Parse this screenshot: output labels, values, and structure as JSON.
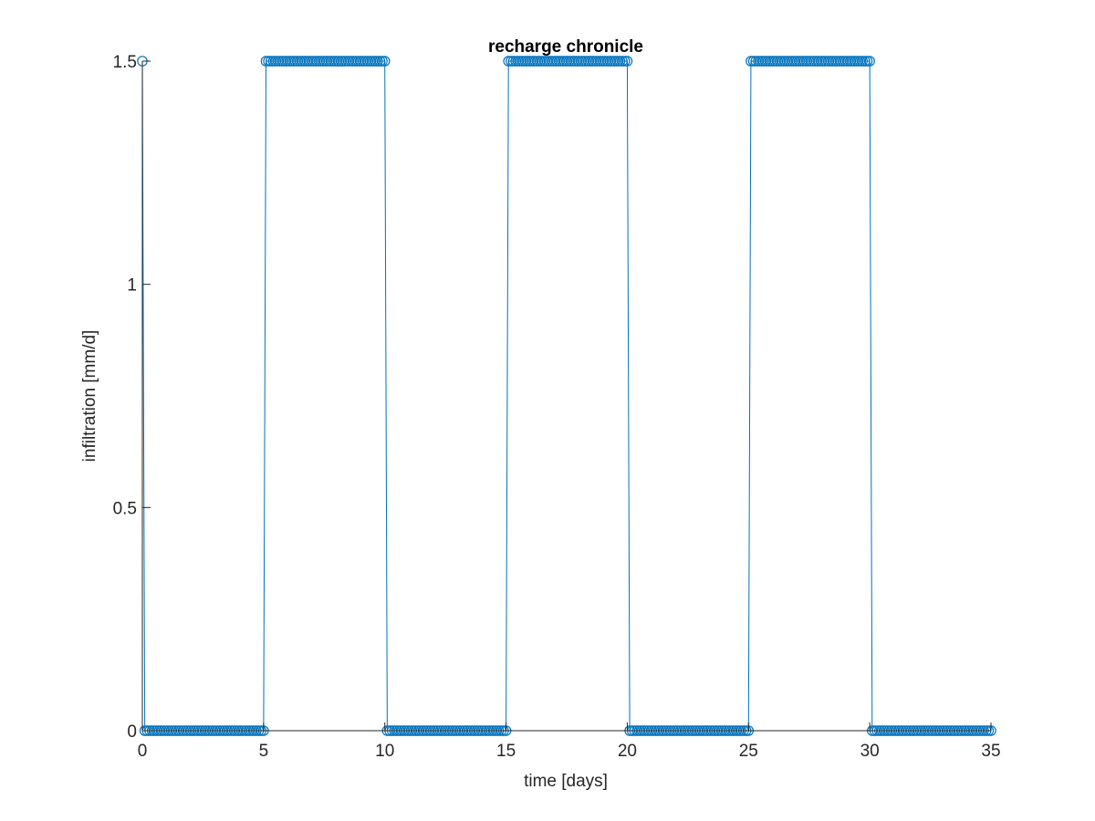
{
  "chart_data": {
    "type": "line",
    "title": "recharge chronicle",
    "xlabel": "time [days]",
    "ylabel": "infiltration [mm/d]",
    "xlim": [
      0,
      35
    ],
    "ylim": [
      0,
      1.5
    ],
    "xticks": [
      0,
      5,
      10,
      15,
      20,
      25,
      30,
      35
    ],
    "yticks": [
      0,
      0.5,
      1,
      1.5
    ],
    "xtick_labels": [
      "0",
      "5",
      "10",
      "15",
      "20",
      "25",
      "30",
      "35"
    ],
    "ytick_labels": [
      "0",
      "0.5",
      "1",
      "1.5"
    ],
    "grid": false,
    "legend": "none",
    "marker": "circle",
    "series_color": "#0072BD",
    "sample_step_days": 0.1,
    "series": [
      {
        "segments": [
          {
            "x_start": 0,
            "x_end": 0,
            "y": 1.5
          },
          {
            "x_start": 0.1,
            "x_end": 5,
            "y": 0
          },
          {
            "x_start": 5.1,
            "x_end": 10,
            "y": 1.5
          },
          {
            "x_start": 10.1,
            "x_end": 15,
            "y": 0
          },
          {
            "x_start": 15.1,
            "x_end": 20,
            "y": 1.5
          },
          {
            "x_start": 20.1,
            "x_end": 25,
            "y": 0
          },
          {
            "x_start": 25.1,
            "x_end": 30,
            "y": 1.5
          },
          {
            "x_start": 30.1,
            "x_end": 35,
            "y": 0
          }
        ]
      }
    ]
  }
}
